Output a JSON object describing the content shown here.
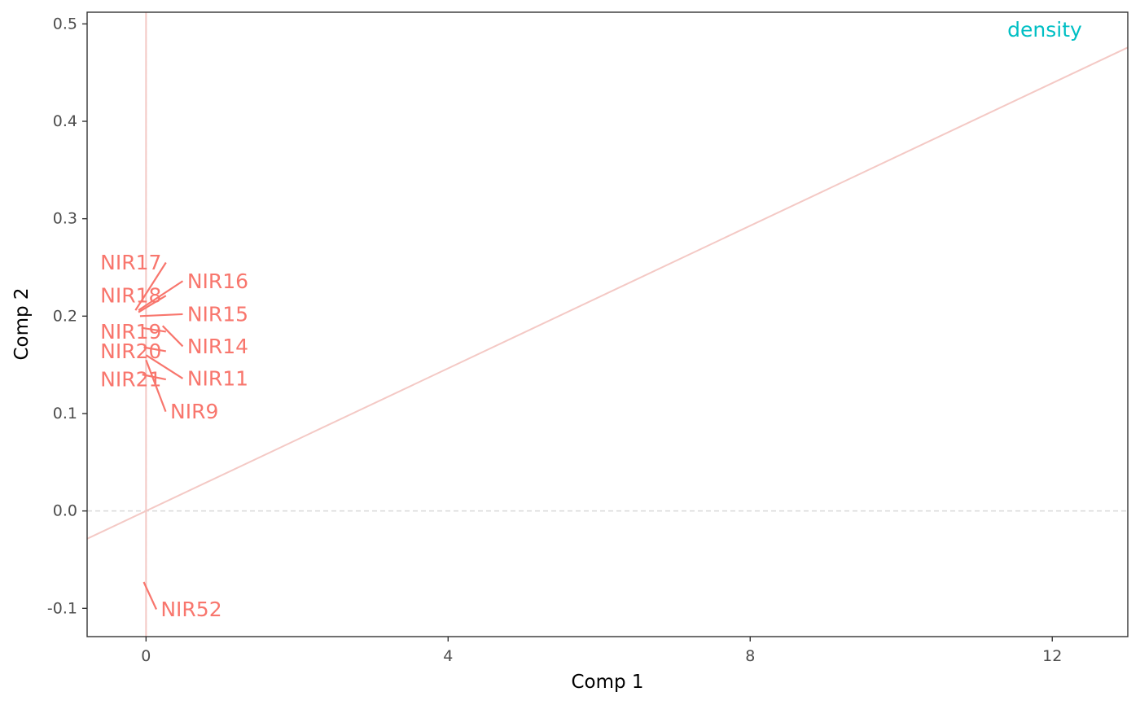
{
  "chart_data": {
    "type": "scatter",
    "xlabel": "Comp 1",
    "ylabel": "Comp 2",
    "xlim": [
      -0.78,
      13.0
    ],
    "ylim": [
      -0.129,
      0.512
    ],
    "x_ticks": [
      0,
      4,
      8,
      12
    ],
    "x_tick_labels": [
      "0",
      "4",
      "8",
      "12"
    ],
    "y_ticks": [
      -0.1,
      0.0,
      0.1,
      0.2,
      0.3,
      0.4,
      0.5
    ],
    "y_tick_labels": [
      "-0.1",
      "0.0",
      "0.1",
      "0.2",
      "0.3",
      "0.4",
      "0.5"
    ],
    "grid": false,
    "reference_lines": {
      "zero_lines": "dashed",
      "vertical_line_x": 0.0,
      "diagonal_slope": 0.0366
    },
    "label_color": "#F8766D",
    "guide_color": "#F4C9C5",
    "annotation": {
      "text": "density",
      "x": 11.9,
      "y": 0.494,
      "color": "#00BFC4"
    },
    "points": [
      {
        "name": "NIR17",
        "x": -0.14,
        "y": 0.206,
        "label_x": -0.2,
        "label_y": 0.255
      },
      {
        "name": "NIR16",
        "x": -0.1,
        "y": 0.206,
        "label_x": 0.95,
        "label_y": 0.236
      },
      {
        "name": "NIR18",
        "x": -0.1,
        "y": 0.204,
        "label_x": -0.2,
        "label_y": 0.221
      },
      {
        "name": "NIR15",
        "x": -0.08,
        "y": 0.2,
        "label_x": 0.95,
        "label_y": 0.202
      },
      {
        "name": "NIR19",
        "x": -0.06,
        "y": 0.188,
        "label_x": -0.2,
        "label_y": 0.184
      },
      {
        "name": "NIR14",
        "x": 0.22,
        "y": 0.19,
        "label_x": 0.95,
        "label_y": 0.169
      },
      {
        "name": "NIR20",
        "x": -0.03,
        "y": 0.168,
        "label_x": -0.2,
        "label_y": 0.164
      },
      {
        "name": "NIR11",
        "x": 0.0,
        "y": 0.16,
        "label_x": 0.95,
        "label_y": 0.136
      },
      {
        "name": "NIR21",
        "x": -0.05,
        "y": 0.14,
        "label_x": -0.2,
        "label_y": 0.135
      },
      {
        "name": "NIR9",
        "x": 0.0,
        "y": 0.155,
        "label_x": 0.64,
        "label_y": 0.102
      },
      {
        "name": "NIR52",
        "x": -0.03,
        "y": -0.073,
        "label_x": 0.6,
        "label_y": -0.101
      }
    ]
  }
}
